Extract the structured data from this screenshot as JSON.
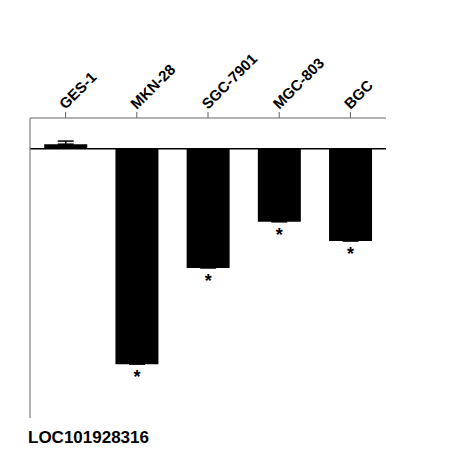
{
  "chart_data": {
    "type": "bar",
    "xlabel": "LOC101928316",
    "categories": [
      "GES-1",
      "MKN-28",
      "SGC-7901",
      "MGC-803",
      "BGC"
    ],
    "values": [
      0.06,
      -2.8,
      -1.55,
      -0.95,
      -1.2
    ],
    "errors": [
      0.04,
      0.15,
      0.1,
      0.16,
      0.12
    ],
    "color": "#000000",
    "ylim": [
      -3.5,
      0.4
    ],
    "yticks": [],
    "tick_labels": "x",
    "grid": false,
    "annotations": [
      {
        "x": "MKN-28",
        "text": "*"
      },
      {
        "x": "SGC-7901",
        "text": "*"
      },
      {
        "x": "MGC-803",
        "text": "*"
      },
      {
        "x": "BGC",
        "text": "*"
      }
    ]
  }
}
